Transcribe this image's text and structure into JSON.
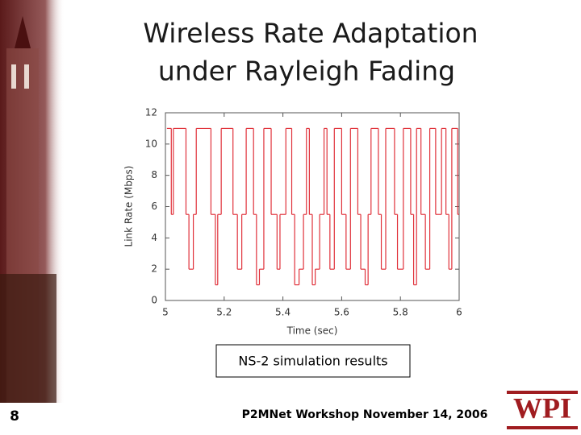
{
  "slide": {
    "title_lines": [
      "Wireless Rate Adaptation",
      "under Rayleigh Fading"
    ],
    "caption": "NS-2 simulation results",
    "footer": "P2MNet Workshop November 14, 2006",
    "page_number": "8",
    "logo": "WPI"
  },
  "chart_data": {
    "type": "line",
    "drawstyle": "steps-post",
    "color": "#e0313a",
    "xlabel": "Time (sec)",
    "ylabel": "Link Rate (Mbps)",
    "x": [
      5.005,
      5.02,
      5.027,
      5.07,
      5.08,
      5.095,
      5.105,
      5.155,
      5.17,
      5.178,
      5.19,
      5.23,
      5.245,
      5.26,
      5.275,
      5.3,
      5.31,
      5.32,
      5.335,
      5.36,
      5.38,
      5.39,
      5.41,
      5.43,
      5.44,
      5.455,
      5.47,
      5.48,
      5.49,
      5.5,
      5.51,
      5.525,
      5.54,
      5.55,
      5.56,
      5.575,
      5.6,
      5.615,
      5.63,
      5.655,
      5.665,
      5.68,
      5.69,
      5.7,
      5.725,
      5.735,
      5.75,
      5.78,
      5.79,
      5.81,
      5.835,
      5.845,
      5.855,
      5.87,
      5.885,
      5.9,
      5.92,
      5.94,
      5.955,
      5.965,
      5.975,
      5.995
    ],
    "values": [
      11,
      5.5,
      11,
      5.5,
      2,
      5.5,
      11,
      5.5,
      1,
      5.5,
      11,
      5.5,
      2,
      5.5,
      11,
      5.5,
      1,
      2,
      11,
      5.5,
      2,
      5.5,
      11,
      5.5,
      1,
      2,
      5.5,
      11,
      5.5,
      1,
      2,
      5.5,
      11,
      5.5,
      2,
      11,
      5.5,
      2,
      11,
      5.5,
      2,
      1,
      5.5,
      11,
      5.5,
      2,
      11,
      5.5,
      2,
      11,
      5.5,
      1,
      11,
      5.5,
      2,
      11,
      5.5,
      11,
      5.5,
      2,
      11,
      5.5
    ],
    "xlim": [
      5,
      6
    ],
    "xticks": [
      5,
      5.2,
      5.4,
      5.6,
      5.8,
      6
    ],
    "ylim": [
      0,
      12
    ],
    "yticks": [
      0,
      2,
      4,
      6,
      8,
      10,
      12
    ]
  }
}
